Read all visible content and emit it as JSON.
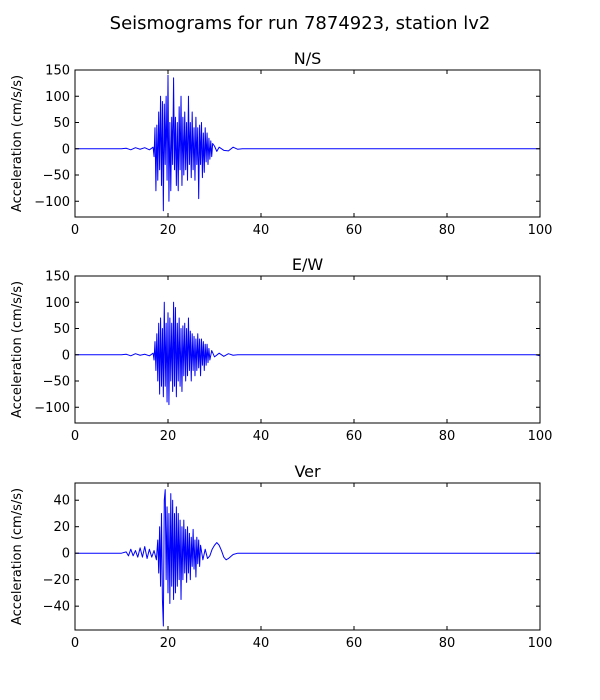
{
  "title": "Seismograms for run 7874923, station lv2",
  "chart_data": [
    {
      "type": "line",
      "title": "N/S",
      "ylabel": "Acceleration (cm/s/s)",
      "xlim": [
        0,
        100
      ],
      "ylim": [
        -130,
        150
      ],
      "xticks": [
        0,
        20,
        40,
        60,
        80,
        100
      ],
      "yticks": [
        -100,
        -50,
        0,
        50,
        100,
        150
      ],
      "series": [
        {
          "color": "#0000ff",
          "points": [
            [
              0,
              0
            ],
            [
              10,
              0
            ],
            [
              11,
              1
            ],
            [
              12,
              -2
            ],
            [
              13,
              2
            ],
            [
              14,
              -1
            ],
            [
              15,
              2
            ],
            [
              16,
              -2
            ],
            [
              16.8,
              3
            ],
            [
              17.0,
              -15
            ],
            [
              17.2,
              40
            ],
            [
              17.4,
              -80
            ],
            [
              17.6,
              45
            ],
            [
              17.8,
              -60
            ],
            [
              18.0,
              70
            ],
            [
              18.2,
              -40
            ],
            [
              18.4,
              100
            ],
            [
              18.6,
              -70
            ],
            [
              18.8,
              90
            ],
            [
              19.0,
              -118
            ],
            [
              19.2,
              85
            ],
            [
              19.4,
              -30
            ],
            [
              19.6,
              100
            ],
            [
              19.8,
              -60
            ],
            [
              20.0,
              140
            ],
            [
              20.2,
              -100
            ],
            [
              20.4,
              50
            ],
            [
              20.6,
              -80
            ],
            [
              20.8,
              60
            ],
            [
              21.0,
              -30
            ],
            [
              21.2,
              135
            ],
            [
              21.4,
              -40
            ],
            [
              21.6,
              60
            ],
            [
              21.8,
              -70
            ],
            [
              22.0,
              50
            ],
            [
              22.2,
              -80
            ],
            [
              22.4,
              80
            ],
            [
              22.6,
              -40
            ],
            [
              22.8,
              100
            ],
            [
              23.0,
              -70
            ],
            [
              23.2,
              60
            ],
            [
              23.4,
              -50
            ],
            [
              23.6,
              70
            ],
            [
              23.8,
              -40
            ],
            [
              24.0,
              50
            ],
            [
              24.2,
              -60
            ],
            [
              24.4,
              100
            ],
            [
              24.6,
              -30
            ],
            [
              24.8,
              50
            ],
            [
              25.0,
              -55
            ],
            [
              25.2,
              70
            ],
            [
              25.4,
              -40
            ],
            [
              25.6,
              40
            ],
            [
              25.8,
              -60
            ],
            [
              26.0,
              60
            ],
            [
              26.2,
              -30
            ],
            [
              26.4,
              40
            ],
            [
              26.6,
              -95
            ],
            [
              26.8,
              45
            ],
            [
              27.0,
              -30
            ],
            [
              27.2,
              50
            ],
            [
              27.4,
              -55
            ],
            [
              27.6,
              30
            ],
            [
              27.8,
              -45
            ],
            [
              28.0,
              40
            ],
            [
              28.2,
              -25
            ],
            [
              28.4,
              30
            ],
            [
              28.6,
              -30
            ],
            [
              28.8,
              20
            ],
            [
              29.0,
              -20
            ],
            [
              29.2,
              15
            ],
            [
              29.4,
              -15
            ],
            [
              29.6,
              10
            ],
            [
              30,
              5
            ],
            [
              30.5,
              -5
            ],
            [
              31,
              3
            ],
            [
              32,
              -3
            ],
            [
              33,
              -4
            ],
            [
              34,
              3
            ],
            [
              35,
              -1
            ],
            [
              36,
              0
            ],
            [
              40,
              0
            ],
            [
              100,
              0
            ]
          ]
        }
      ]
    },
    {
      "type": "line",
      "title": "E/W",
      "ylabel": "Acceleration (cm/s/s)",
      "xlim": [
        0,
        100
      ],
      "ylim": [
        -130,
        150
      ],
      "xticks": [
        0,
        20,
        40,
        60,
        80,
        100
      ],
      "yticks": [
        -100,
        -50,
        0,
        50,
        100,
        150
      ],
      "series": [
        {
          "color": "#0000ff",
          "points": [
            [
              0,
              0
            ],
            [
              10,
              0
            ],
            [
              11,
              1
            ],
            [
              12,
              -2
            ],
            [
              13,
              2
            ],
            [
              14,
              -1
            ],
            [
              15,
              1
            ],
            [
              16,
              -2
            ],
            [
              16.8,
              3
            ],
            [
              17.0,
              -10
            ],
            [
              17.2,
              25
            ],
            [
              17.4,
              -30
            ],
            [
              17.6,
              40
            ],
            [
              17.8,
              -50
            ],
            [
              18.0,
              60
            ],
            [
              18.2,
              -75
            ],
            [
              18.4,
              70
            ],
            [
              18.6,
              -60
            ],
            [
              18.8,
              50
            ],
            [
              19.0,
              -80
            ],
            [
              19.2,
              100
            ],
            [
              19.4,
              -60
            ],
            [
              19.6,
              60
            ],
            [
              19.8,
              -90
            ],
            [
              20.0,
              80
            ],
            [
              20.2,
              -95
            ],
            [
              20.4,
              70
            ],
            [
              20.6,
              -50
            ],
            [
              20.8,
              60
            ],
            [
              21.0,
              -70
            ],
            [
              21.2,
              100
            ],
            [
              21.4,
              -60
            ],
            [
              21.6,
              90
            ],
            [
              21.8,
              -80
            ],
            [
              22.0,
              60
            ],
            [
              22.2,
              -50
            ],
            [
              22.4,
              70
            ],
            [
              22.6,
              -60
            ],
            [
              22.8,
              50
            ],
            [
              23.0,
              -70
            ],
            [
              23.2,
              55
            ],
            [
              23.4,
              -40
            ],
            [
              23.6,
              60
            ],
            [
              23.8,
              -50
            ],
            [
              24.0,
              50
            ],
            [
              24.2,
              -40
            ],
            [
              24.4,
              70
            ],
            [
              24.6,
              -30
            ],
            [
              24.8,
              45
            ],
            [
              25.0,
              -50
            ],
            [
              25.2,
              40
            ],
            [
              25.4,
              -30
            ],
            [
              25.6,
              35
            ],
            [
              25.8,
              -40
            ],
            [
              26.0,
              30
            ],
            [
              26.2,
              -30
            ],
            [
              26.4,
              40
            ],
            [
              26.6,
              -25
            ],
            [
              26.8,
              30
            ],
            [
              27.0,
              -40
            ],
            [
              27.2,
              30
            ],
            [
              27.4,
              -20
            ],
            [
              27.6,
              25
            ],
            [
              27.8,
              -30
            ],
            [
              28.0,
              20
            ],
            [
              28.2,
              -20
            ],
            [
              28.4,
              20
            ],
            [
              28.6,
              -15
            ],
            [
              28.8,
              12
            ],
            [
              29.0,
              -10
            ],
            [
              29.4,
              8
            ],
            [
              30,
              -4
            ],
            [
              31,
              3
            ],
            [
              32,
              -3
            ],
            [
              33,
              2
            ],
            [
              34,
              -1
            ],
            [
              35,
              0
            ],
            [
              40,
              0
            ],
            [
              99,
              0
            ],
            [
              100,
              -2
            ]
          ]
        }
      ]
    },
    {
      "type": "line",
      "title": "Ver",
      "ylabel": "Acceleration (cm/s/s)",
      "xlim": [
        0,
        100
      ],
      "ylim": [
        -58,
        53
      ],
      "xticks": [
        0,
        20,
        40,
        60,
        80,
        100
      ],
      "yticks": [
        -40,
        -20,
        0,
        20,
        40
      ],
      "series": [
        {
          "color": "#0000ff",
          "points": [
            [
              0,
              0
            ],
            [
              10,
              0
            ],
            [
              11,
              1
            ],
            [
              11.5,
              -2
            ],
            [
              12,
              3
            ],
            [
              12.5,
              -2
            ],
            [
              13,
              2
            ],
            [
              13.5,
              -3
            ],
            [
              14,
              4
            ],
            [
              14.5,
              -3
            ],
            [
              15,
              5
            ],
            [
              15.5,
              -4
            ],
            [
              16,
              3
            ],
            [
              16.5,
              -3
            ],
            [
              17,
              2
            ],
            [
              17.5,
              -5
            ],
            [
              17.8,
              10
            ],
            [
              18.0,
              -15
            ],
            [
              18.2,
              20
            ],
            [
              18.4,
              -25
            ],
            [
              18.6,
              30
            ],
            [
              18.8,
              -35
            ],
            [
              19.0,
              -55
            ],
            [
              19.2,
              40
            ],
            [
              19.4,
              48
            ],
            [
              19.6,
              -20
            ],
            [
              19.8,
              35
            ],
            [
              20.0,
              -30
            ],
            [
              20.2,
              30
            ],
            [
              20.4,
              -38
            ],
            [
              20.6,
              45
            ],
            [
              20.8,
              -25
            ],
            [
              21.0,
              40
            ],
            [
              21.2,
              -35
            ],
            [
              21.4,
              30
            ],
            [
              21.6,
              -30
            ],
            [
              21.8,
              35
            ],
            [
              22.0,
              -25
            ],
            [
              22.2,
              30
            ],
            [
              22.4,
              -20
            ],
            [
              22.6,
              25
            ],
            [
              22.8,
              -35
            ],
            [
              23.0,
              20
            ],
            [
              23.2,
              -20
            ],
            [
              23.4,
              25
            ],
            [
              23.6,
              -15
            ],
            [
              23.8,
              18
            ],
            [
              24.0,
              -22
            ],
            [
              24.2,
              20
            ],
            [
              24.4,
              -15
            ],
            [
              24.6,
              15
            ],
            [
              24.8,
              -20
            ],
            [
              25.0,
              12
            ],
            [
              25.2,
              -10
            ],
            [
              25.4,
              18
            ],
            [
              25.6,
              -12
            ],
            [
              25.8,
              10
            ],
            [
              26.0,
              -18
            ],
            [
              26.2,
              12
            ],
            [
              26.4,
              -8
            ],
            [
              26.6,
              10
            ],
            [
              26.8,
              -10
            ],
            [
              27.0,
              6
            ],
            [
              27.5,
              -5
            ],
            [
              28,
              3
            ],
            [
              28.5,
              -4
            ],
            [
              29,
              -2
            ],
            [
              29.5,
              3
            ],
            [
              30,
              6
            ],
            [
              30.5,
              8
            ],
            [
              31,
              6
            ],
            [
              31.5,
              2
            ],
            [
              32,
              -3
            ],
            [
              32.5,
              -5
            ],
            [
              33,
              -4
            ],
            [
              34,
              -1
            ],
            [
              35,
              0
            ],
            [
              40,
              0
            ],
            [
              100,
              0
            ]
          ]
        }
      ]
    }
  ]
}
